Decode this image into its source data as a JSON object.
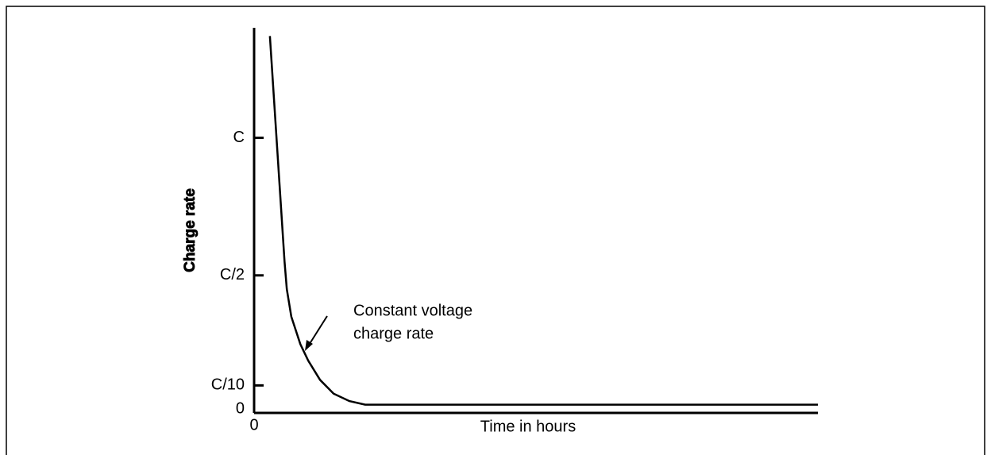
{
  "chart_data": {
    "type": "line",
    "y_label": "Charge rate",
    "x_label": "Time in hours",
    "annotation": [
      "Constant voltage",
      "charge rate"
    ],
    "x": [
      0.28,
      0.54,
      0.58,
      0.66,
      0.82,
      0.96,
      1.17,
      1.41,
      1.69,
      1.97,
      10
    ],
    "series": [
      {
        "name": "Constant voltage charge rate",
        "color": "#000000",
        "values": [
          1.37,
          0.55,
          0.45,
          0.35,
          0.25,
          0.19,
          0.12,
          0.07,
          0.043,
          0.03,
          0.03
        ]
      }
    ],
    "xlim": [
      0,
      10
    ],
    "xticks": [
      0
    ],
    "ylim": [
      0,
      1.4
    ],
    "yticks": [
      0,
      {
        "value": 0.1,
        "label": "C/10"
      },
      {
        "value": 0.5,
        "label": "C/2"
      },
      {
        "value": 1,
        "label": "C"
      }
    ]
  }
}
